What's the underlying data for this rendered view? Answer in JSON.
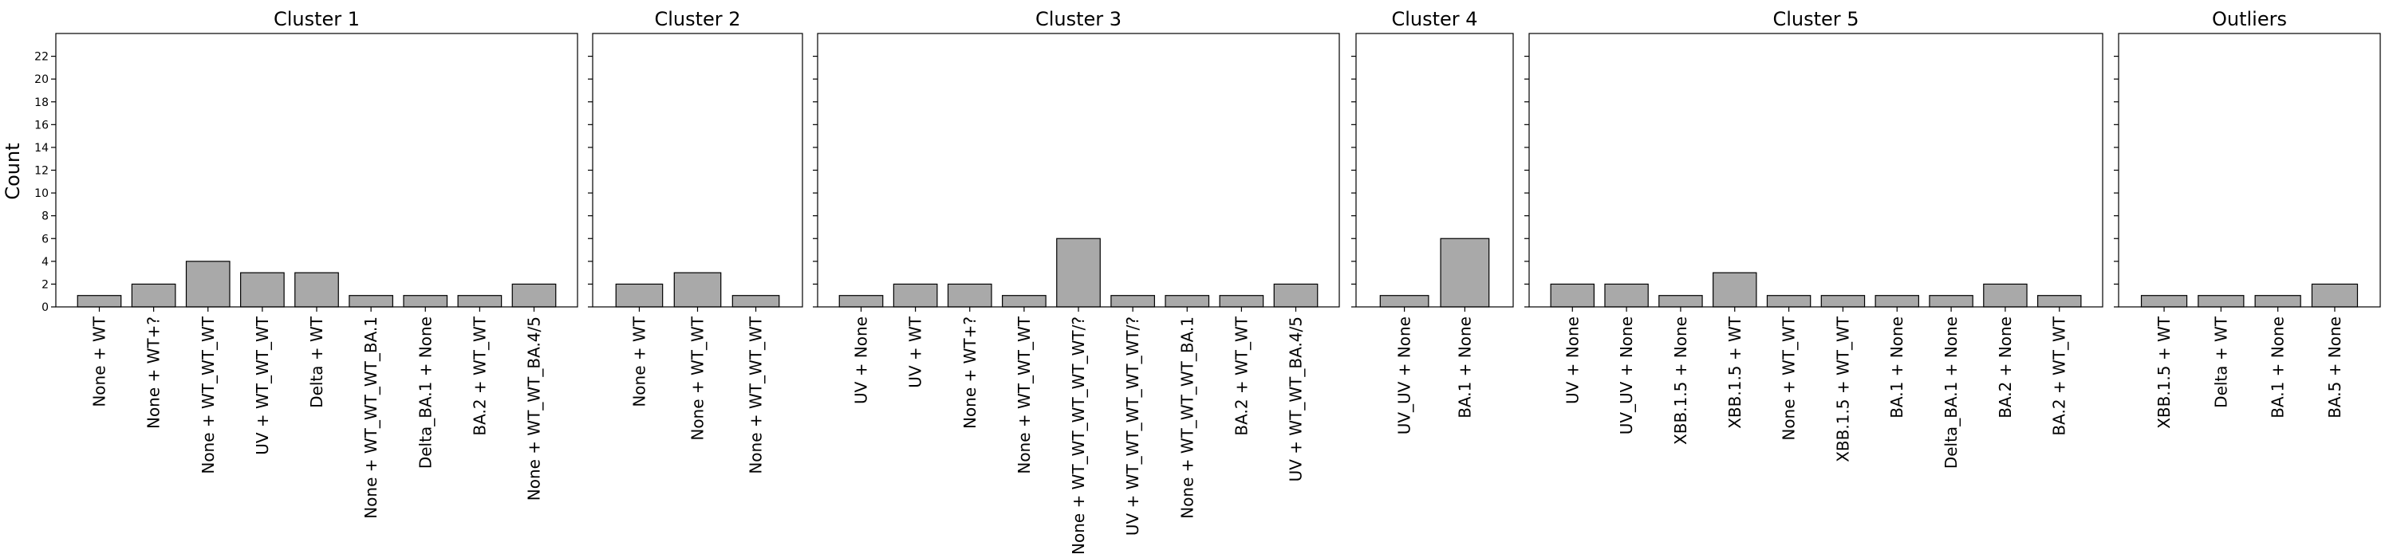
{
  "figure": {
    "ylabel": "Count",
    "y_ticks": [
      0,
      2,
      4,
      6,
      8,
      10,
      12,
      14,
      16,
      18,
      20,
      22
    ],
    "ylim": [
      0,
      24
    ],
    "bar_color": "#a9a9a9",
    "edge_color": "#000000"
  },
  "chart_data": [
    {
      "type": "bar",
      "title": "Cluster 1",
      "categories": [
        "None + WT",
        "None + WT+?",
        "None + WT_WT_WT",
        "UV + WT_WT_WT",
        "Delta + WT",
        "None + WT_WT_WT_BA.1",
        "Delta_BA.1 + None",
        "BA.2 + WT_WT",
        "None + WT_WT_BA.4/5"
      ],
      "values": [
        1,
        2,
        4,
        3,
        3,
        1,
        1,
        1,
        2
      ],
      "ylabel": "Count",
      "ylim": [
        0,
        24
      ]
    },
    {
      "type": "bar",
      "title": "Cluster 2",
      "categories": [
        "None + WT",
        "None + WT_WT",
        "None + WT_WT_WT"
      ],
      "values": [
        2,
        3,
        1
      ],
      "ylim": [
        0,
        24
      ]
    },
    {
      "type": "bar",
      "title": "Cluster 3",
      "categories": [
        "UV + None",
        "UV + WT",
        "None + WT+?",
        "None + WT_WT_WT",
        "None + WT_WT_WT_WT_WT/?",
        "UV + WT_WT_WT_WT_WT/?",
        "None + WT_WT_WT_BA.1",
        "BA.2 + WT_WT",
        "UV + WT_WT_BA.4/5"
      ],
      "values": [
        1,
        2,
        2,
        1,
        6,
        1,
        1,
        1,
        2
      ],
      "ylim": [
        0,
        24
      ]
    },
    {
      "type": "bar",
      "title": "Cluster 4",
      "categories": [
        "UV_UV + None",
        "BA.1 + None"
      ],
      "values": [
        1,
        6
      ],
      "ylim": [
        0,
        24
      ]
    },
    {
      "type": "bar",
      "title": "Cluster 5",
      "categories": [
        "UV + None",
        "UV_UV + None",
        "XBB.1.5 + None",
        "XBB.1.5 + WT",
        "None + WT_WT",
        "XBB.1.5 + WT_WT",
        "BA.1 + None",
        "Delta_BA.1 + None",
        "BA.2 + None",
        "BA.2 + WT_WT"
      ],
      "values": [
        2,
        2,
        1,
        3,
        1,
        1,
        1,
        1,
        2,
        1
      ],
      "ylim": [
        0,
        24
      ]
    },
    {
      "type": "bar",
      "title": "Outliers",
      "categories": [
        "XBB.1.5 + WT",
        "Delta + WT",
        "BA.1 + None",
        "BA.5 + None"
      ],
      "values": [
        1,
        1,
        1,
        2
      ],
      "ylim": [
        0,
        24
      ]
    }
  ]
}
